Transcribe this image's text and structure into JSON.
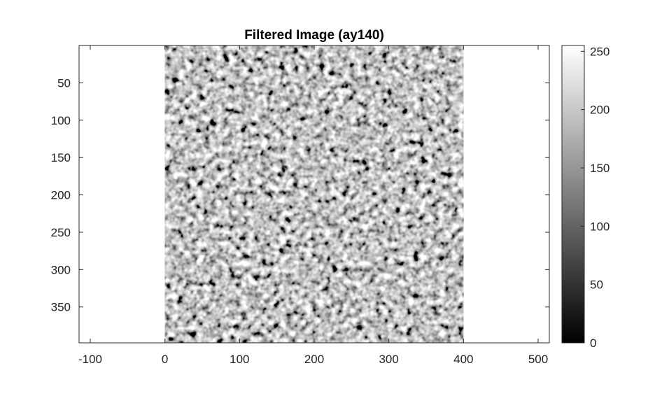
{
  "chart_data": [
    {
      "type": "heatmap",
      "title": "Filtered Image (ay140)",
      "colormap": "gray",
      "image_x_range": [
        0,
        400
      ],
      "image_y_range": [
        0,
        400
      ],
      "xlim": [
        -115,
        515
      ],
      "ylim": [
        0,
        398
      ],
      "y_direction": "reversed",
      "x_ticks": [
        -100,
        0,
        100,
        200,
        300,
        400,
        500
      ],
      "y_ticks": [
        50,
        100,
        150,
        200,
        250,
        300,
        350
      ],
      "x_tick_labels": [
        "-100",
        "0",
        "100",
        "200",
        "300",
        "400",
        "500"
      ],
      "y_tick_labels": [
        "50",
        "100",
        "150",
        "200",
        "250",
        "300",
        "350"
      ],
      "texture": "band-pass filtered random noise, mean ≈ 128, grainy blob pattern",
      "grid": false
    },
    {
      "type": "colorbar",
      "clim": [
        0,
        255
      ],
      "ticks": [
        0,
        50,
        100,
        150,
        200,
        250
      ],
      "tick_labels": [
        "0",
        "50",
        "100",
        "150",
        "200",
        "250"
      ],
      "colormap": "gray"
    }
  ],
  "colors": {
    "axis": "#262626",
    "background": "#ffffff",
    "noise_mid": "#808080"
  }
}
